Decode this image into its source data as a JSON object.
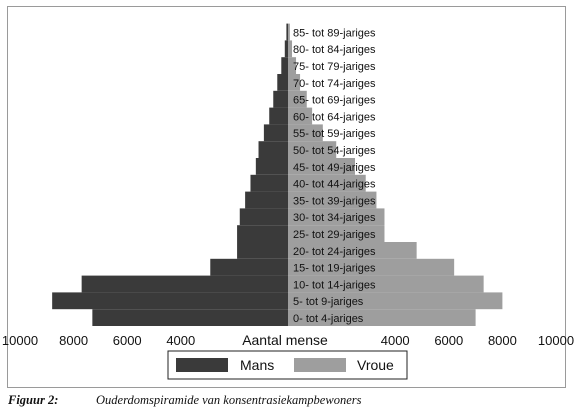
{
  "chart_data": {
    "type": "bar",
    "orientation": "horizontal",
    "subtype": "population-pyramid",
    "title": "",
    "xlabel": "Aantal mense",
    "ylabel": "",
    "xlim": [
      -10000,
      10000
    ],
    "x_tick_labels": [
      "10000",
      "8000",
      "6000",
      "4000",
      "4000",
      "6000",
      "8000",
      "10000"
    ],
    "x_tick_values": [
      -10000,
      -8000,
      -6000,
      -4000,
      4000,
      6000,
      8000,
      10000
    ],
    "grid": false,
    "legend": {
      "position": "bottom-center",
      "entries": [
        "Mans",
        "Vroue"
      ]
    },
    "categories": [
      "0- tot 4-jariges",
      "5- tot 9-jariges",
      "10- tot 14-jariges",
      "15- tot 19-jariges",
      "20- tot 24-jariges",
      "25- tot 29-jariges",
      "30- tot 34-jariges",
      "35- tot 39-jariges",
      "40- tot 44-jariges",
      "45- tot 49-jariges",
      "50- tot 54-jariges",
      "55- tot 59-jariges",
      "60- tot 64-jariges",
      "65- tot 69-jariges",
      "70- tot 74-jariges",
      "75- tot 79-jariges",
      "80- tot 84-jariges",
      "85- tot 89-jariges"
    ],
    "series": [
      {
        "name": "Mans",
        "color": "#3a3a3a",
        "values": [
          7300,
          8800,
          7700,
          2900,
          1900,
          1900,
          1800,
          1600,
          1400,
          1200,
          1100,
          900,
          700,
          550,
          400,
          250,
          120,
          60
        ]
      },
      {
        "name": "Vroue",
        "color": "#9e9e9e",
        "values": [
          7000,
          8000,
          7300,
          6200,
          4800,
          3600,
          3600,
          3300,
          2900,
          2500,
          1800,
          1300,
          900,
          700,
          450,
          300,
          150,
          70
        ]
      }
    ]
  },
  "caption": {
    "number": "Figuur 2:",
    "text": "Ouderdomspiramide van konsentrasiekampbewoners"
  }
}
